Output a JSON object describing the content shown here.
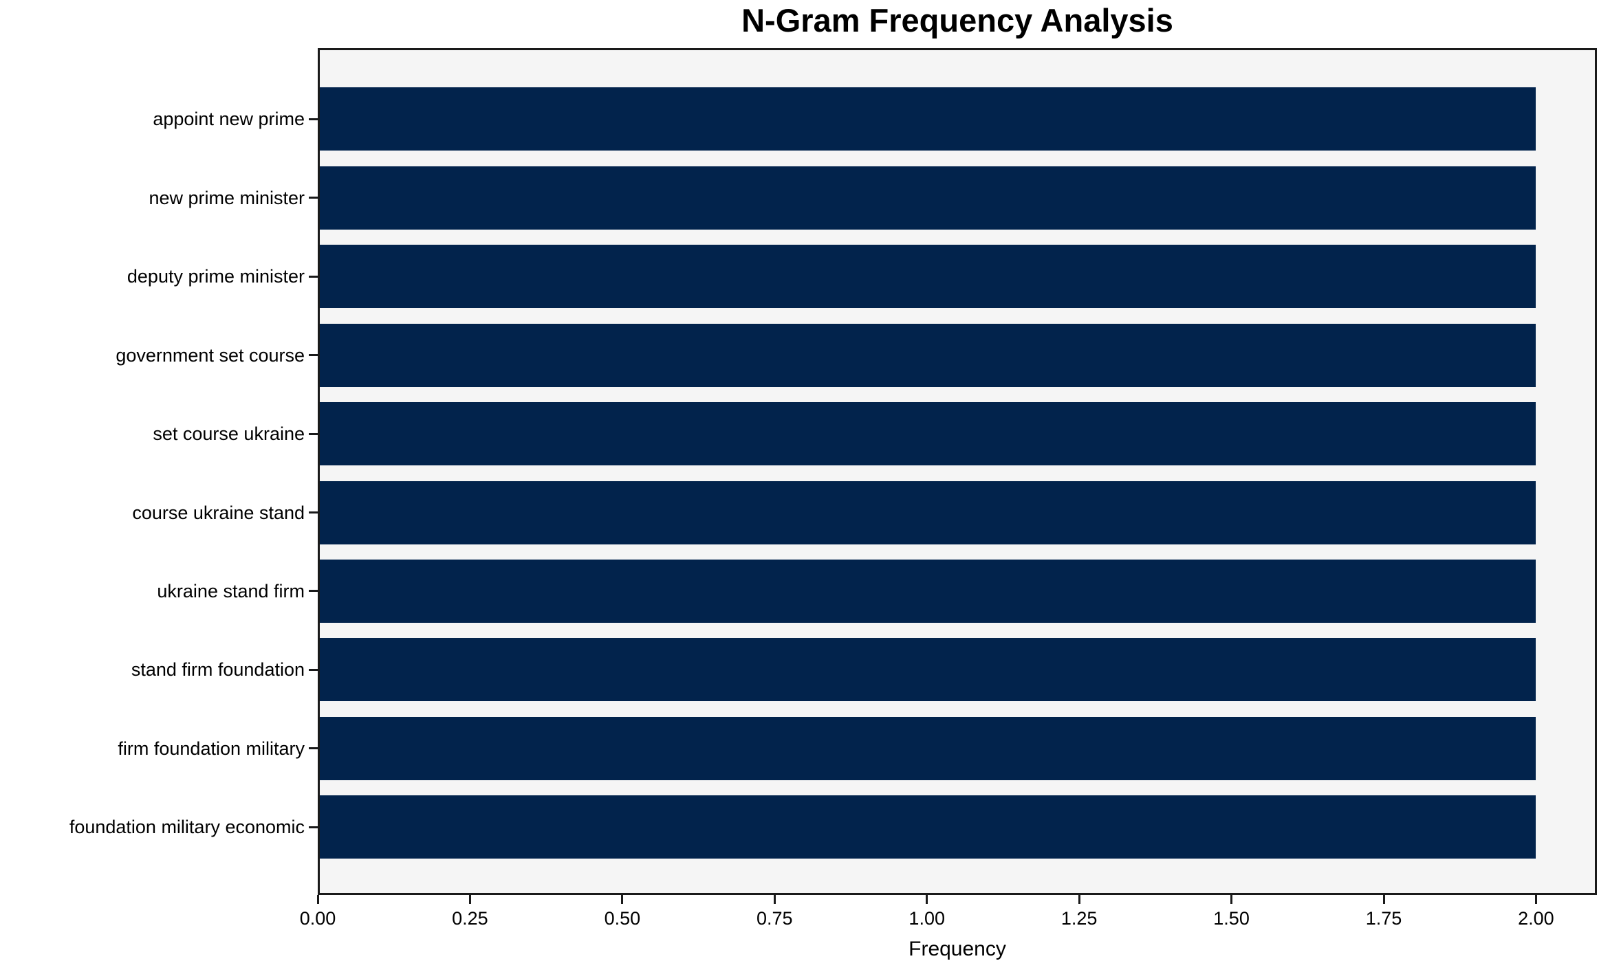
{
  "chart_data": {
    "type": "bar",
    "orientation": "horizontal",
    "title": "N-Gram Frequency Analysis",
    "xlabel": "Frequency",
    "ylabel": "",
    "categories": [
      "appoint new prime",
      "new prime minister",
      "deputy prime minister",
      "government set course",
      "set course ukraine",
      "course ukraine stand",
      "ukraine stand firm",
      "stand firm foundation",
      "firm foundation military",
      "foundation military economic"
    ],
    "values": [
      2,
      2,
      2,
      2,
      2,
      2,
      2,
      2,
      2,
      2
    ],
    "xlim": [
      0,
      2.1
    ],
    "xticks": [
      0,
      0.25,
      0.5,
      0.75,
      1.0,
      1.25,
      1.5,
      1.75,
      2.0
    ],
    "xtick_labels": [
      "0.00",
      "0.25",
      "0.50",
      "0.75",
      "1.00",
      "1.25",
      "1.50",
      "1.75",
      "2.00"
    ],
    "grid": false,
    "legend_position": "none",
    "colors": {
      "bar": "#02234c",
      "plot_background": "#f5f5f5",
      "figure_background": "#ffffff",
      "axis": "#1a1a1a",
      "text": "#000000"
    }
  }
}
